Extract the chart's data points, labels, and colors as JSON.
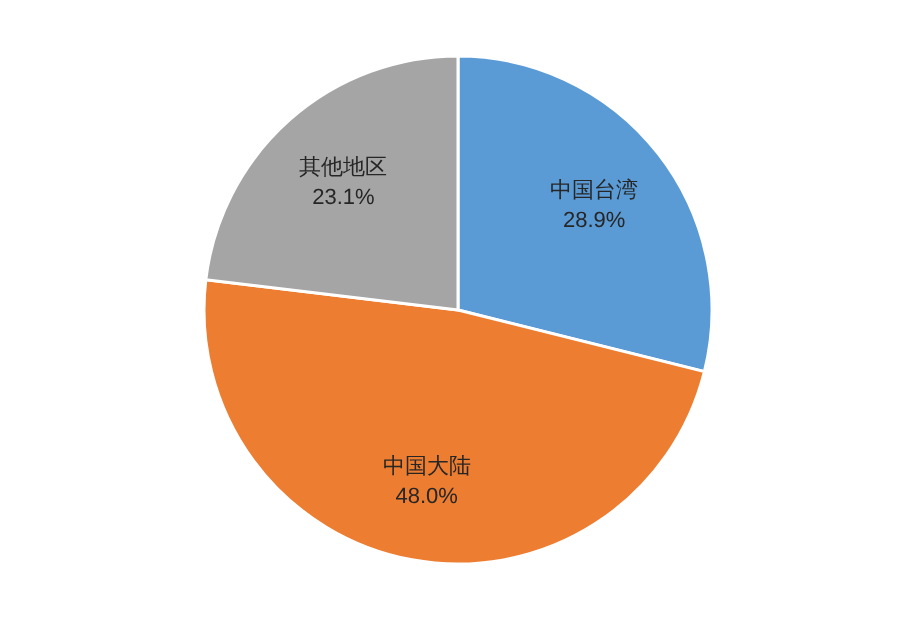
{
  "chart_data": {
    "type": "pie",
    "categories": [
      "中国台湾",
      "中国大陆",
      "其他地区"
    ],
    "values": [
      28.9,
      48.0,
      23.1
    ],
    "value_labels": [
      "28.9%",
      "48.0%",
      "23.1%"
    ],
    "colors": [
      "#5b9bd5",
      "#ed7d31",
      "#a5a5a5"
    ],
    "legend": false
  }
}
